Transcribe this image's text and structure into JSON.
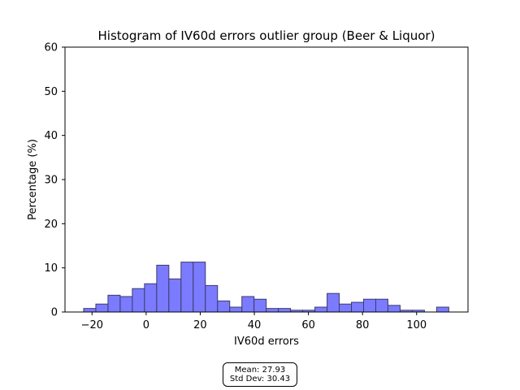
{
  "chart_data": {
    "type": "bar",
    "title": "Histogram of IV60d errors outlier group (Beer & Liquor)",
    "xlabel": "IV60d errors",
    "ylabel": "Percentage (%)",
    "xlim": [
      -30,
      119
    ],
    "ylim": [
      0,
      60
    ],
    "xticks": [
      -20,
      0,
      20,
      40,
      60,
      80,
      100
    ],
    "yticks": [
      0,
      10,
      20,
      30,
      40,
      50,
      60
    ],
    "bin_edges": [
      -23.1,
      -18.6,
      -14.1,
      -9.6,
      -5.1,
      -0.6,
      3.9,
      8.4,
      12.9,
      17.4,
      21.9,
      26.4,
      30.9,
      35.4,
      39.9,
      44.4,
      48.9,
      53.4,
      57.9,
      62.4,
      66.9,
      71.4,
      75.9,
      80.4,
      84.9,
      89.4,
      93.9,
      98.4,
      102.9,
      107.4,
      111.9
    ],
    "values": [
      0.8,
      1.8,
      3.8,
      3.5,
      5.3,
      6.4,
      10.6,
      7.5,
      11.3,
      11.3,
      6.0,
      2.5,
      1.1,
      3.5,
      2.9,
      0.8,
      0.8,
      0.4,
      0.4,
      1.1,
      4.2,
      1.8,
      2.2,
      2.9,
      2.9,
      1.5,
      0.4,
      0.4,
      0,
      1.1
    ]
  },
  "stats": {
    "mean": "Mean: 27.93",
    "std": "Std Dev: 30.43"
  }
}
